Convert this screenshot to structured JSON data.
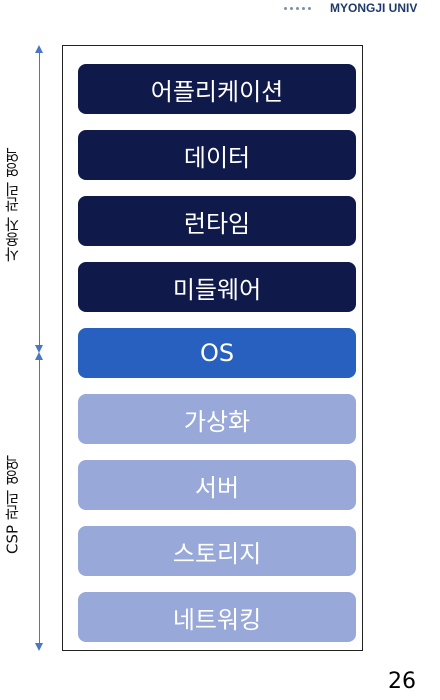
{
  "header": {
    "logo_text": "MYONGJI UNIV"
  },
  "layers": [
    {
      "label": "어플리케이션",
      "group": "user"
    },
    {
      "label": "데이터",
      "group": "user"
    },
    {
      "label": "런타임",
      "group": "user"
    },
    {
      "label": "미들웨어",
      "group": "user"
    },
    {
      "label": "OS",
      "group": "os"
    },
    {
      "label": "가상화",
      "group": "csp"
    },
    {
      "label": "서버",
      "group": "csp"
    },
    {
      "label": "스토리지",
      "group": "csp"
    },
    {
      "label": "네트워킹",
      "group": "csp"
    }
  ],
  "regions": {
    "user": "사용자 관리 영역",
    "csp": "CSP 관리 영역"
  },
  "colors": {
    "user": "#0f1a4a",
    "os": "#2860c0",
    "csp": "#98a9d9",
    "arrow": "#4a77c2"
  },
  "page_number": "26"
}
